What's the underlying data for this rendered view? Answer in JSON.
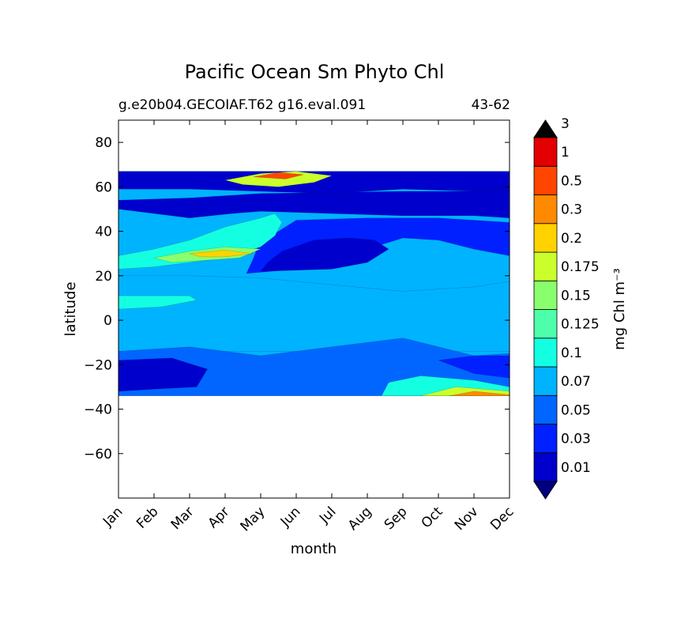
{
  "chart_data": {
    "type": "heatmap",
    "subtype": "filled-contour",
    "title": "Pacific Ocean Sm Phyto Chl",
    "subtitle_left": "g.e20b04.GECOIAF.T62 g16.eval.091",
    "subtitle_right": "43-62",
    "xlabel": "month",
    "ylabel": "latitude",
    "x_categories": [
      "Jan",
      "Feb",
      "Mar",
      "Apr",
      "May",
      "Jun",
      "Jul",
      "Aug",
      "Sep",
      "Oct",
      "Nov",
      "Dec"
    ],
    "ylim": [
      -80,
      90
    ],
    "y_ticks": [
      -60,
      -40,
      -20,
      0,
      20,
      40,
      60,
      80
    ],
    "y_tick_labels": [
      "−60",
      "−40",
      "−20",
      "0",
      "20",
      "40",
      "60",
      "80"
    ],
    "data_lat_range": [
      -34,
      67
    ],
    "colorbar": {
      "label": "mg Chl m⁻³",
      "levels": [
        0.01,
        0.03,
        0.05,
        0.07,
        0.1,
        0.125,
        0.15,
        0.175,
        0.2,
        0.3,
        0.5,
        1,
        3
      ],
      "tick_labels": [
        "0.01",
        "0.03",
        "0.05",
        "0.07",
        "0.1",
        "0.125",
        "0.15",
        "0.175",
        "0.2",
        "0.3",
        "0.5",
        "1",
        "3"
      ],
      "colors": [
        "#00007f",
        "#0000cd",
        "#0020ff",
        "#0066ff",
        "#00b3ff",
        "#14ffe2",
        "#4dffaa",
        "#8aff6d",
        "#caff2c",
        "#ffd200",
        "#ff8a00",
        "#ff4500",
        "#e30000",
        "#7f0000"
      ],
      "extend": "both"
    },
    "regions": [
      {
        "name": "high-lat band",
        "level": 1,
        "poly": [
          [
            0,
            67
          ],
          [
            12,
            67
          ],
          [
            12,
            57
          ],
          [
            10,
            58
          ],
          [
            8,
            59
          ],
          [
            6,
            57
          ],
          [
            4,
            58
          ],
          [
            2,
            59
          ],
          [
            0,
            59
          ]
        ]
      },
      {
        "name": "subarctic deep low",
        "level": 0,
        "poly": [
          [
            3.2,
            54
          ],
          [
            5,
            53
          ],
          [
            7,
            54
          ],
          [
            6.5,
            56
          ],
          [
            5,
            57
          ],
          [
            3.5,
            56
          ]
        ]
      },
      {
        "name": "subpolar low",
        "level": 1,
        "poly": [
          [
            0,
            50
          ],
          [
            2,
            46
          ],
          [
            3.2,
            48
          ],
          [
            4,
            49
          ],
          [
            6,
            48
          ],
          [
            8,
            47
          ],
          [
            10,
            47
          ],
          [
            12,
            45
          ],
          [
            12,
            58
          ],
          [
            8,
            58
          ],
          [
            4,
            57
          ],
          [
            2,
            55
          ],
          [
            0,
            54
          ]
        ]
      },
      {
        "name": "subtropical gyre",
        "level": 2,
        "poly": [
          [
            3.6,
            21
          ],
          [
            5,
            23
          ],
          [
            6,
            26
          ],
          [
            7,
            32
          ],
          [
            8,
            37
          ],
          [
            9,
            36
          ],
          [
            10,
            32
          ],
          [
            11,
            29
          ],
          [
            12,
            27
          ],
          [
            12,
            43
          ],
          [
            9,
            46
          ],
          [
            7,
            46
          ],
          [
            5,
            45
          ],
          [
            4.5,
            40
          ],
          [
            4,
            37
          ],
          [
            3.8,
            28
          ]
        ]
      },
      {
        "name": "gyre core",
        "level": 1,
        "poly": [
          [
            4,
            22
          ],
          [
            6,
            23
          ],
          [
            7,
            26
          ],
          [
            7.6,
            32
          ],
          [
            7.2,
            36
          ],
          [
            6.5,
            37
          ],
          [
            5.5,
            36
          ],
          [
            4.6,
            31
          ],
          [
            4.2,
            26
          ]
        ]
      },
      {
        "name": "tropics",
        "level": 4,
        "poly": [
          [
            0,
            -14
          ],
          [
            12,
            -14
          ],
          [
            12,
            20
          ],
          [
            10,
            15
          ],
          [
            8,
            13
          ],
          [
            6,
            16
          ],
          [
            4,
            19
          ],
          [
            2,
            20
          ],
          [
            0,
            20
          ]
        ]
      },
      {
        "name": "equatorial patch",
        "level": 5,
        "poly": [
          [
            0,
            11
          ],
          [
            2,
            11
          ],
          [
            2.2,
            9
          ],
          [
            1.2,
            6
          ],
          [
            0,
            5
          ]
        ]
      },
      {
        "name": "spring bloom",
        "level": 5,
        "poly": [
          [
            0,
            29
          ],
          [
            1,
            32
          ],
          [
            2,
            36
          ],
          [
            3,
            42
          ],
          [
            4,
            46
          ],
          [
            4.4,
            48
          ],
          [
            4.6,
            44
          ],
          [
            4.4,
            38
          ],
          [
            4,
            33
          ],
          [
            3,
            28
          ],
          [
            2,
            26
          ],
          [
            1,
            24
          ],
          [
            0,
            23
          ]
        ]
      },
      {
        "name": "spring bloom core",
        "level": 7,
        "poly": [
          [
            1,
            28
          ],
          [
            2,
            31
          ],
          [
            3,
            33
          ],
          [
            4,
            32
          ],
          [
            3.4,
            28
          ],
          [
            2.5,
            27
          ],
          [
            1.5,
            26
          ]
        ]
      },
      {
        "name": "bloom peak",
        "level": 9,
        "poly": [
          [
            2,
            30
          ],
          [
            3,
            31.5
          ],
          [
            3.8,
            30
          ],
          [
            3,
            28.5
          ],
          [
            2.3,
            28.5
          ]
        ]
      },
      {
        "name": "northern bloom",
        "level": 8,
        "poly": [
          [
            3,
            63
          ],
          [
            4,
            66
          ],
          [
            5,
            67
          ],
          [
            6,
            65
          ],
          [
            5.5,
            62
          ],
          [
            4.5,
            60
          ],
          [
            3.5,
            61
          ]
        ]
      },
      {
        "name": "northern bloom core",
        "level": 11,
        "poly": [
          [
            3.8,
            64.5
          ],
          [
            4.5,
            66.5
          ],
          [
            5.2,
            65.5
          ],
          [
            4.7,
            63.5
          ]
        ]
      },
      {
        "name": "southern subtropics",
        "level": 3,
        "poly": [
          [
            0,
            -14
          ],
          [
            0,
            -34
          ],
          [
            12,
            -34
          ],
          [
            12,
            -14
          ],
          [
            10,
            -16
          ],
          [
            9,
            -12
          ],
          [
            8,
            -8
          ],
          [
            7,
            -10
          ],
          [
            6,
            -12
          ],
          [
            4,
            -16
          ],
          [
            2,
            -12
          ]
        ]
      },
      {
        "name": "southern low",
        "level": 1,
        "poly": [
          [
            0,
            -18
          ],
          [
            1.5,
            -17
          ],
          [
            2.5,
            -22
          ],
          [
            2.2,
            -30
          ],
          [
            1,
            -31
          ],
          [
            0,
            -32
          ]
        ]
      },
      {
        "name": "south-east low",
        "level": 2,
        "poly": [
          [
            9,
            -18
          ],
          [
            10,
            -16
          ],
          [
            11,
            -16
          ],
          [
            12,
            -20
          ],
          [
            12,
            -24
          ],
          [
            11,
            -26
          ],
          [
            10,
            -24
          ]
        ]
      },
      {
        "name": "southern spring bloom",
        "level": 5,
        "poly": [
          [
            7.4,
            -34
          ],
          [
            7.6,
            -28
          ],
          [
            8.5,
            -25
          ],
          [
            10,
            -27
          ],
          [
            11,
            -30
          ],
          [
            12,
            -32
          ],
          [
            12,
            -34
          ]
        ]
      },
      {
        "name": "southern spring bloom core",
        "level": 8,
        "poly": [
          [
            8.5,
            -34
          ],
          [
            9.5,
            -30
          ],
          [
            11,
            -32
          ],
          [
            12,
            -33.5
          ],
          [
            12,
            -34
          ]
        ]
      },
      {
        "name": "southern bloom peak",
        "level": 10,
        "poly": [
          [
            9.3,
            -34
          ],
          [
            10,
            -32
          ],
          [
            11,
            -33.5
          ],
          [
            11,
            -34
          ]
        ]
      }
    ]
  }
}
